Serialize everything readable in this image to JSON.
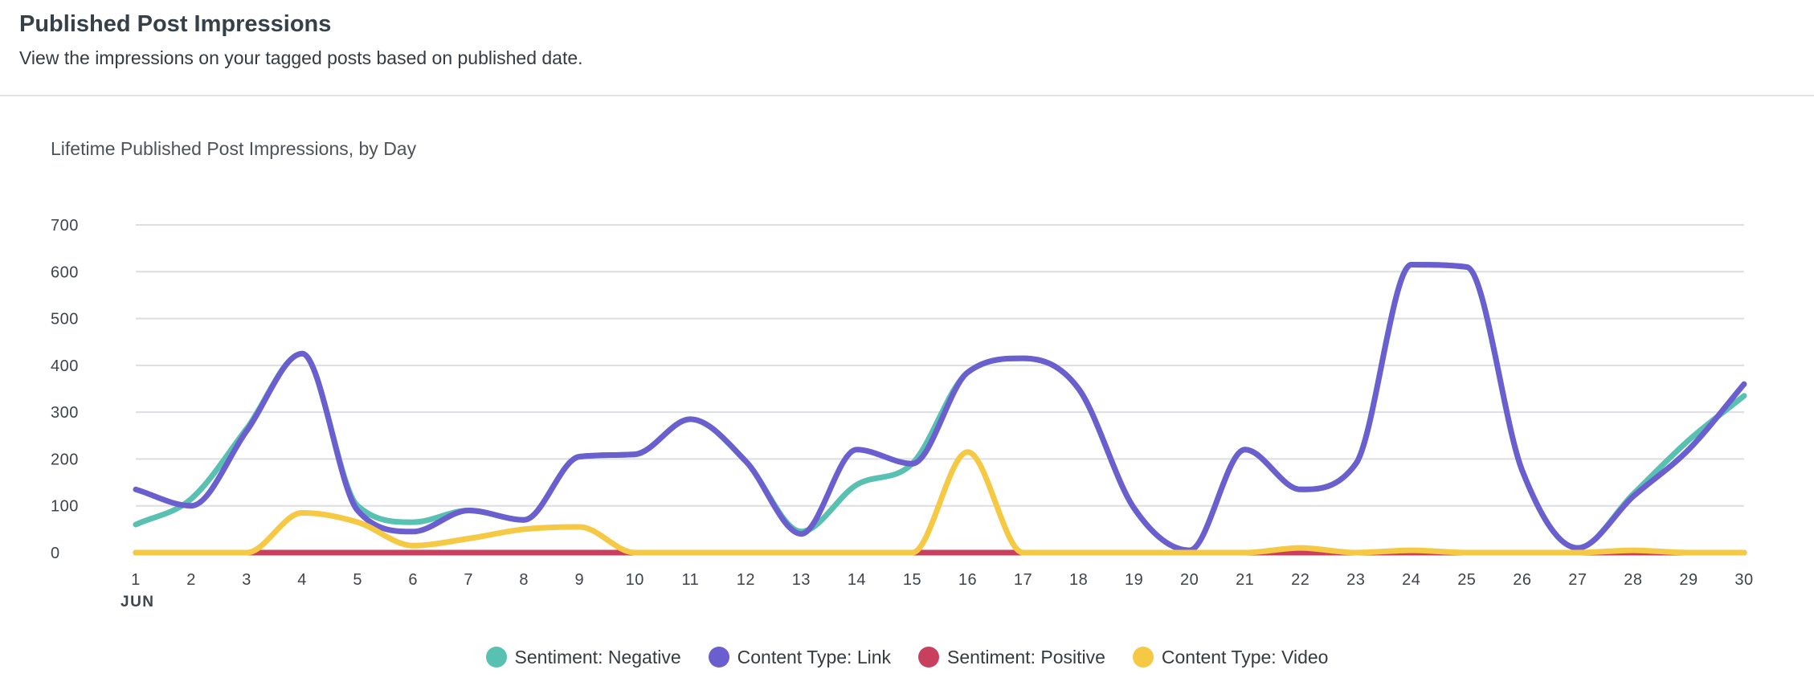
{
  "header": {
    "title": "Published Post Impressions",
    "subtitle": "View the impressions on your tagged posts based on published date."
  },
  "chart_data": {
    "type": "line",
    "title": "Lifetime Published Post Impressions, by Day",
    "x_month_label": "JUN",
    "x": [
      1,
      2,
      3,
      4,
      5,
      6,
      7,
      8,
      9,
      10,
      11,
      12,
      13,
      14,
      15,
      16,
      17,
      18,
      19,
      20,
      21,
      22,
      23,
      24,
      25,
      26,
      27,
      28,
      29,
      30
    ],
    "xlim": [
      1,
      30
    ],
    "ylim": [
      0,
      700
    ],
    "yticks": [
      0,
      100,
      200,
      300,
      400,
      500,
      600,
      700
    ],
    "grid": true,
    "legend_position": "bottom",
    "series": [
      {
        "name": "Sentiment: Negative",
        "color": "#58c1b2",
        "values": [
          60,
          115,
          265,
          425,
          100,
          65,
          90,
          70,
          205,
          210,
          285,
          195,
          45,
          145,
          190,
          385,
          415,
          350,
          95,
          5,
          220,
          135,
          190,
          615,
          610,
          175,
          10,
          125,
          240,
          335
        ]
      },
      {
        "name": "Content Type: Link",
        "color": "#6b5fcf",
        "values": [
          135,
          100,
          260,
          425,
          90,
          45,
          90,
          70,
          205,
          210,
          285,
          195,
          40,
          220,
          190,
          385,
          415,
          350,
          95,
          5,
          220,
          135,
          190,
          615,
          610,
          175,
          10,
          120,
          220,
          360
        ]
      },
      {
        "name": "Sentiment: Positive",
        "color": "#c9405f",
        "values": [
          0,
          0,
          0,
          0,
          0,
          0,
          0,
          0,
          0,
          0,
          0,
          0,
          0,
          0,
          0,
          0,
          0,
          0,
          0,
          0,
          0,
          0,
          0,
          0,
          0,
          0,
          0,
          0,
          0,
          0
        ]
      },
      {
        "name": "Content Type: Video",
        "color": "#f6c944",
        "values": [
          0,
          0,
          0,
          85,
          65,
          15,
          30,
          50,
          55,
          0,
          0,
          0,
          0,
          0,
          0,
          215,
          0,
          0,
          0,
          0,
          0,
          10,
          0,
          5,
          0,
          0,
          0,
          5,
          0,
          0
        ]
      }
    ]
  }
}
